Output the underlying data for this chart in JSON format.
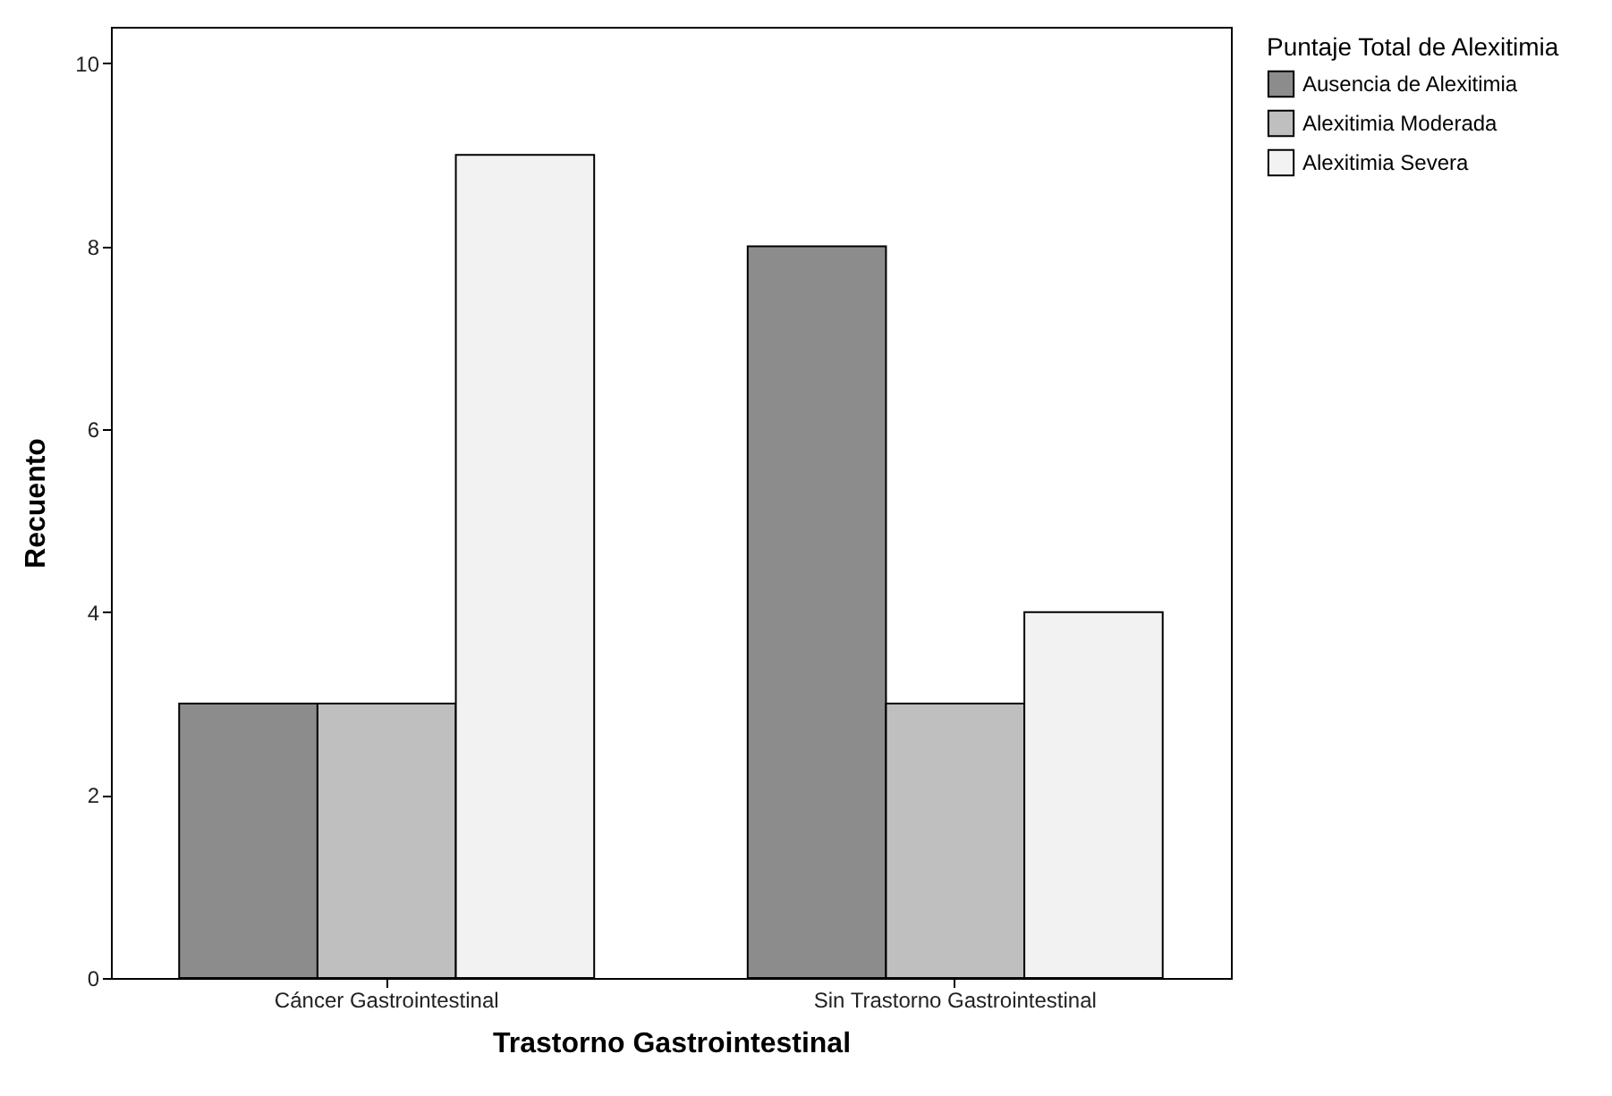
{
  "chart_data": {
    "type": "bar",
    "xlabel": "Trastorno Gastrointestinal",
    "ylabel": "Recuento",
    "legend_title": "Puntaje Total de Alexitimia",
    "categories": [
      "Cáncer Gastrointestinal",
      "Sin Trastorno Gastrointestinal"
    ],
    "series": [
      {
        "name": "Ausencia de Alexitimia",
        "color": "#8c8c8c",
        "values": [
          3,
          8
        ]
      },
      {
        "name": "Alexitimia Moderada",
        "color": "#bfbfbf",
        "values": [
          3,
          3
        ]
      },
      {
        "name": "Alexitimia Severa",
        "color": "#f2f2f2",
        "values": [
          9,
          4
        ]
      }
    ],
    "ylim": [
      0,
      10.4
    ],
    "yticks": [
      0,
      2,
      4,
      6,
      8,
      10
    ],
    "grid": false,
    "legend": "top right"
  }
}
